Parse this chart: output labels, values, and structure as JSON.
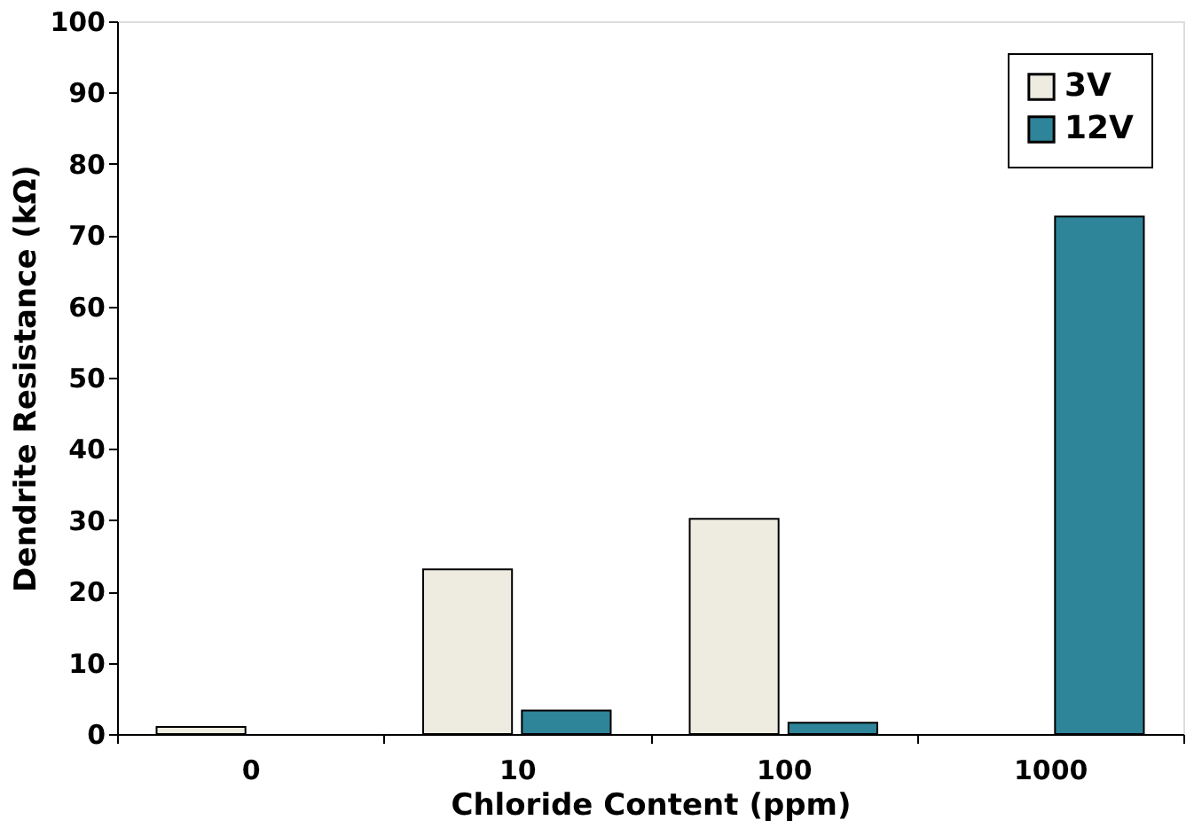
{
  "chart_data": {
    "type": "bar",
    "xlabel": "Chloride Content (ppm)",
    "ylabel": "Dendrite Resistance (kΩ)",
    "categories": [
      "0",
      "10",
      "100",
      "1000"
    ],
    "series": [
      {
        "name": "3V",
        "color": "#eeebe0",
        "values": [
          1.0,
          23.1,
          30.2,
          null
        ]
      },
      {
        "name": "12V",
        "color": "#2e8499",
        "values": [
          null,
          3.3,
          1.6,
          72.6
        ]
      }
    ],
    "ylim": [
      0,
      100
    ],
    "yticks": [
      0,
      10,
      20,
      30,
      40,
      50,
      60,
      70,
      80,
      90,
      100
    ],
    "grid": false,
    "legend": "top right"
  }
}
